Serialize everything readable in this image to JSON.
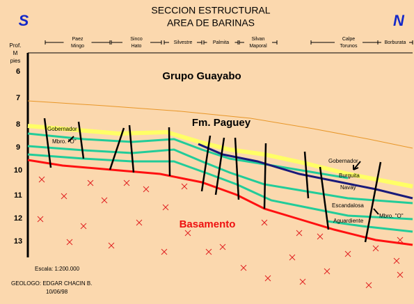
{
  "header": {
    "title": [
      "SECCION ESTRUCTURAL",
      "AREA DE BARINAS"
    ],
    "left": "S",
    "right": "N"
  },
  "wells": [
    [
      "Paez",
      "Mingo"
    ],
    [
      "Sinco",
      "Hato"
    ],
    [
      "Silvestre"
    ],
    [
      "Palmita"
    ],
    [
      "Silvan",
      "Maporal"
    ],
    [
      "Calpe",
      "Torunos"
    ],
    [
      "Borburata"
    ]
  ],
  "axis": {
    "label": [
      "Prof.",
      "M",
      "pies"
    ],
    "ticks": [
      6,
      7,
      8,
      9,
      10,
      11,
      12,
      13
    ]
  },
  "units": {
    "guayabo": "Grupo Guayabo",
    "paguey": "Fm. Paguey",
    "basamento": "Basamento",
    "gobernador_w": "Gobernador",
    "mbro_o_w": "Mbro. \"O\"",
    "gobernador_e": "Gobernador",
    "burguita": "Burguita",
    "navay": "Navay",
    "escandalosa": "Escandalosa",
    "aguardiente": "Aguardiente",
    "mbro_o_e": "Mbro. \"O\""
  },
  "footer": {
    "scale": "Escala: 1:200.000",
    "geologist": "GEOLOGO: EDGAR CHACIN B.",
    "date": "10/06/98"
  }
}
